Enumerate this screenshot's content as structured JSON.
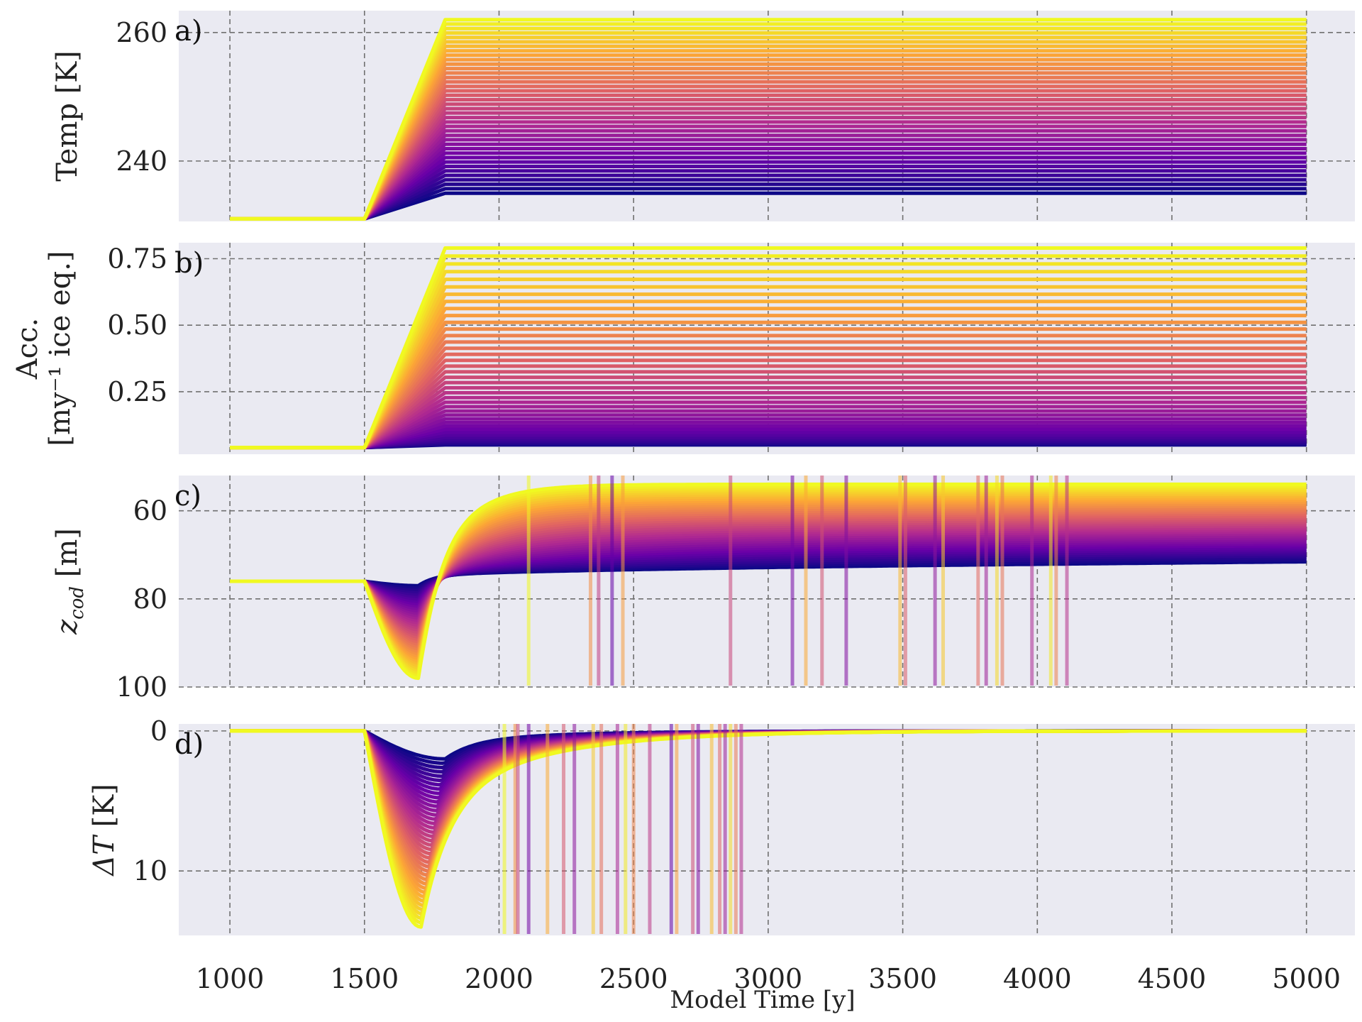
{
  "figure": {
    "xlabel": "Model Time [y]",
    "x_ticks": [
      1000,
      1500,
      2000,
      2500,
      3000,
      3500,
      4000,
      4500,
      5000
    ],
    "colormap": "plasma",
    "colormap_stops": [
      "#0d0887",
      "#6a00a8",
      "#b12a90",
      "#e16462",
      "#fca636",
      "#f0f921"
    ],
    "background": "#eaeaf2",
    "n_runs": 40
  },
  "chart_data": [
    {
      "type": "line",
      "panel_label": "a)",
      "ylabel": "Temp [K]",
      "xlim": [
        810,
        5180
      ],
      "ylim": [
        230.6,
        263.4
      ],
      "y_ticks": [
        240,
        260
      ],
      "grid": true,
      "x": [
        1000,
        1500,
        1800,
        5000
      ],
      "series_pattern": "each run: constant 231.0 until 1500, linear ramp to its final value at 1800, constant to 5000",
      "y_start": 231.0,
      "y_final_range": [
        235.0,
        262.0
      ],
      "n_series": 40
    },
    {
      "type": "line",
      "panel_label": "b)",
      "ylabel_line1": "Acc.",
      "ylabel_line2": "[my⁻¹ ice eq.]",
      "xlim": [
        810,
        5180
      ],
      "ylim": [
        0.015,
        0.81
      ],
      "y_ticks": [
        0.25,
        0.5,
        0.75
      ],
      "y_tick_labels": [
        "0.25",
        "0.50",
        "0.75"
      ],
      "grid": true,
      "x": [
        1000,
        1500,
        1800,
        5000
      ],
      "series_pattern": "each run: constant 0.04 until 1500, linear ramp to its final value at 1800, constant to 5000",
      "y_start": 0.04,
      "y_final_range": [
        0.05,
        0.79
      ],
      "n_series": 40
    },
    {
      "type": "line",
      "panel_label": "c)",
      "ylabel_var": "z",
      "ylabel_sub": "cod",
      "ylabel_unit": " [m]",
      "xlim": [
        810,
        5180
      ],
      "ylim": [
        100,
        52
      ],
      "y_inverted": true,
      "y_ticks": [
        60,
        80,
        100
      ],
      "grid": true,
      "series_pattern": "each run: constant 76 until 1500, dip toward a minimum near 1700, recovery to a plateau between 54 and 73 m",
      "y_start": 76,
      "dip_depth_range": [
        77,
        98
      ],
      "y_final_range": [
        54,
        73
      ],
      "spikes_x": [
        2110,
        2340,
        2370,
        2420,
        2460,
        2860,
        3090,
        3140,
        3200,
        3290,
        3490,
        3510,
        3620,
        3650,
        3780,
        3810,
        3850,
        3870,
        3980,
        4050,
        4070,
        4110
      ],
      "n_series": 40
    },
    {
      "type": "line",
      "panel_label": "d)",
      "ylabel_var": "ΔT",
      "ylabel_unit": " [K]",
      "xlim": [
        810,
        5180
      ],
      "ylim": [
        -14.6,
        0.5
      ],
      "y_ticks": [
        0,
        -10
      ],
      "y_tick_labels": [
        "0",
        "10"
      ],
      "grid": true,
      "series_pattern": "each run: 0 until 1500, drop to a minimum near 1700-1800, slow recovery back toward 0 by 5000",
      "y_start": 0,
      "dip_depth_range": [
        -2.0,
        -14.0
      ],
      "spikes_x": [
        2020,
        2060,
        2070,
        2110,
        2180,
        2240,
        2280,
        2350,
        2380,
        2440,
        2470,
        2500,
        2560,
        2640,
        2660,
        2720,
        2740,
        2790,
        2820,
        2840,
        2860,
        2880,
        2900
      ],
      "n_series": 40
    }
  ]
}
